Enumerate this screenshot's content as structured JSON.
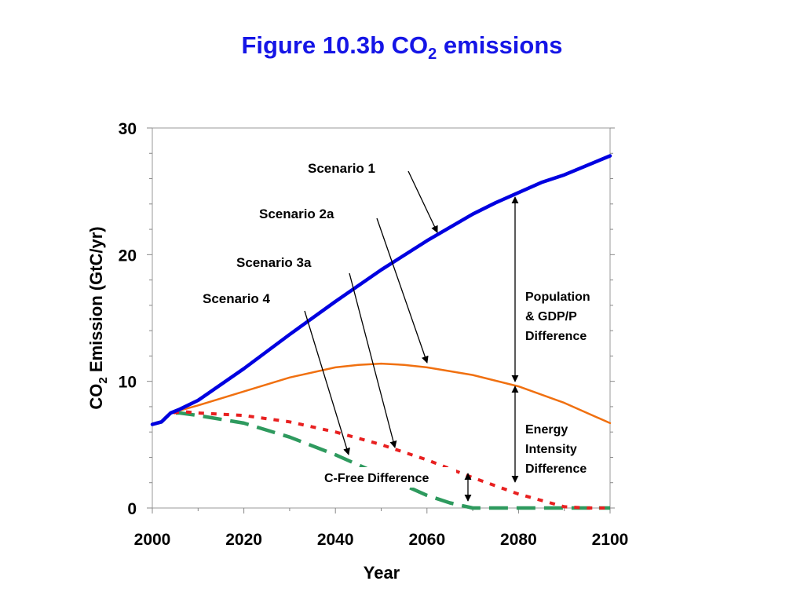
{
  "chart_data": {
    "type": "line",
    "title": {
      "main": "Figure 10.3b CO",
      "sub": "2",
      "rest": " emissions"
    },
    "xlabel": "Year",
    "ylabel": {
      "pre": "CO",
      "sub": "2",
      "post": " Emission (GtC/yr)"
    },
    "xlim": [
      2000,
      2100
    ],
    "ylim": [
      0,
      30
    ],
    "xticks": [
      2000,
      2020,
      2040,
      2060,
      2080,
      2100
    ],
    "yticks": [
      0,
      10,
      20,
      30
    ],
    "grid": false,
    "series": [
      {
        "name": "Scenario 1",
        "color": "#0000e0",
        "style": "solid",
        "x": [
          2000,
          2002,
          2004,
          2006,
          2010,
          2020,
          2030,
          2040,
          2050,
          2060,
          2070,
          2075,
          2080,
          2085,
          2090,
          2100
        ],
        "y": [
          6.6,
          6.8,
          7.5,
          7.8,
          8.5,
          11.0,
          13.7,
          16.3,
          18.8,
          21.1,
          23.2,
          24.1,
          24.9,
          25.7,
          26.3,
          27.8
        ]
      },
      {
        "name": "Scenario 2a",
        "color": "#f07010",
        "style": "solid",
        "x": [
          2000,
          2002,
          2004,
          2006,
          2010,
          2020,
          2030,
          2040,
          2045,
          2050,
          2055,
          2060,
          2070,
          2080,
          2090,
          2100
        ],
        "y": [
          6.6,
          6.8,
          7.5,
          7.7,
          8.1,
          9.2,
          10.3,
          11.1,
          11.3,
          11.4,
          11.3,
          11.1,
          10.5,
          9.6,
          8.3,
          6.7
        ]
      },
      {
        "name": "Scenario 3a",
        "color": "#e82020",
        "style": "dotted",
        "x": [
          2000,
          2002,
          2004,
          2007,
          2010,
          2020,
          2030,
          2040,
          2050,
          2060,
          2070,
          2080,
          2090,
          2095,
          2100
        ],
        "y": [
          6.6,
          6.8,
          7.5,
          7.6,
          7.5,
          7.3,
          6.8,
          6.0,
          5.0,
          3.8,
          2.4,
          1.1,
          0.1,
          0.0,
          0.0
        ]
      },
      {
        "name": "Scenario 4",
        "color": "#2e9a5e",
        "style": "dashed",
        "x": [
          2000,
          2002,
          2004,
          2006,
          2010,
          2020,
          2030,
          2040,
          2050,
          2060,
          2065,
          2070,
          2080,
          2090,
          2100
        ],
        "y": [
          6.6,
          6.8,
          7.5,
          7.5,
          7.3,
          6.7,
          5.6,
          4.2,
          2.6,
          1.0,
          0.4,
          0.0,
          0.0,
          0.0,
          0.0
        ]
      }
    ],
    "annotations": {
      "scenario1": "Scenario 1",
      "scenario2a": "Scenario 2a",
      "scenario3a": "Scenario 3a",
      "scenario4": "Scenario 4",
      "pop_gdp": [
        "Population",
        "& GDP/P",
        "Difference"
      ],
      "energy": [
        "Energy",
        "Intensity",
        "Difference"
      ],
      "cfree": "C-Free Difference"
    }
  }
}
